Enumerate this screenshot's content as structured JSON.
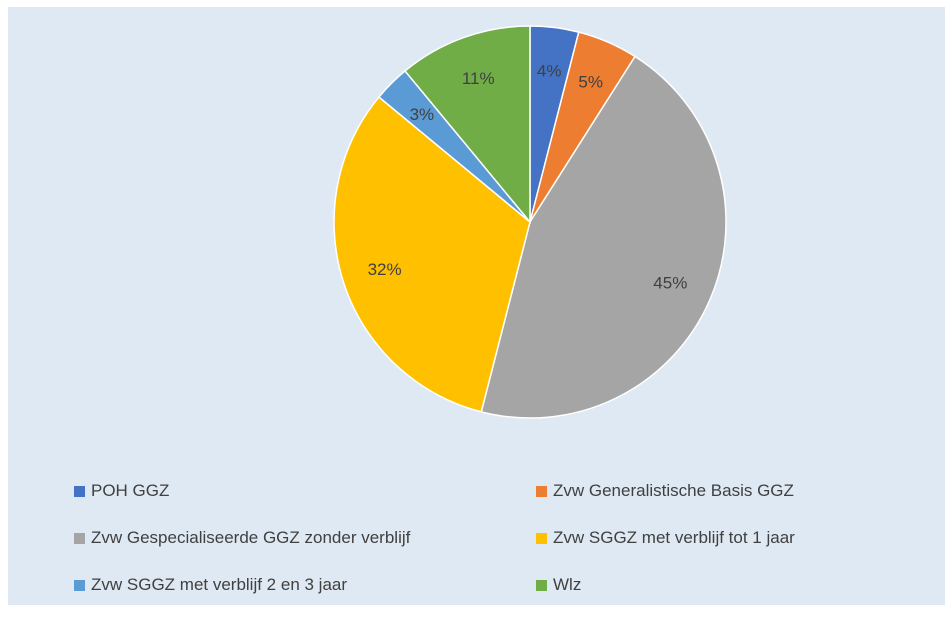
{
  "chart_data": {
    "type": "pie",
    "categories": [
      "POH GGZ",
      "Zvw Generalistische Basis GGZ",
      "Zvw Gespecialiseerde GGZ zonder verblijf",
      "Zvw SGGZ met verblijf tot 1 jaar",
      "Zvw SGGZ met verblijf 2 en 3 jaar",
      "Wlz"
    ],
    "values": [
      4,
      5,
      45,
      32,
      3,
      11
    ],
    "data_labels": [
      "4%",
      "5%",
      "45%",
      "32%",
      "3%",
      "11%"
    ],
    "colors": [
      "#4472c4",
      "#ed7d31",
      "#a5a5a5",
      "#ffc000",
      "#5b9bd5",
      "#70ad47"
    ],
    "legend_position": "bottom"
  }
}
